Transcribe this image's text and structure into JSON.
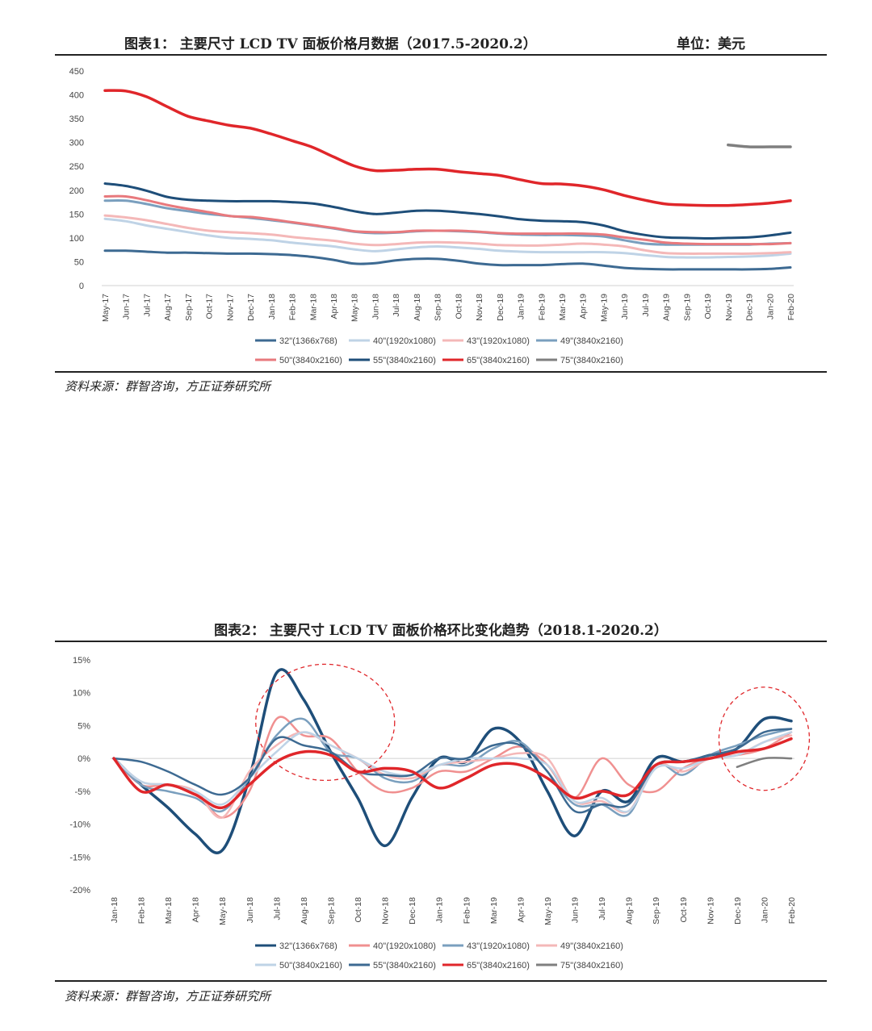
{
  "chart1": {
    "title": "图表1：  主要尺寸 LCD TV 面板价格月数据（2017.5-2020.2）",
    "unit": "单位：美元",
    "source": "资料来源：群智咨询，方正证券研究所"
  },
  "chart2": {
    "title": "图表2：  主要尺寸 LCD TV 面板价格环比变化趋势（2018.1-2020.2）",
    "source": "资料来源：群智咨询，方正证券研究所"
  },
  "chart_data": [
    {
      "type": "line",
      "title": "图表1：  主要尺寸 LCD TV 面板价格月数据（2017.5-2020.2）",
      "ylabel": "单位：美元",
      "ylim": [
        0,
        450
      ],
      "yticks": [
        0,
        50,
        100,
        150,
        200,
        250,
        300,
        350,
        400,
        450
      ],
      "grid": false,
      "legend": "bottom",
      "categories": [
        "May-17",
        "Jun-17",
        "Jul-17",
        "Aug-17",
        "Sep-17",
        "Oct-17",
        "Nov-17",
        "Dec-17",
        "Jan-18",
        "Feb-18",
        "Mar-18",
        "Apr-18",
        "May-18",
        "Jun-18",
        "Jul-18",
        "Aug-18",
        "Sep-18",
        "Oct-18",
        "Nov-18",
        "Dec-18",
        "Jan-19",
        "Feb-19",
        "Mar-19",
        "Apr-19",
        "May-19",
        "Jun-19",
        "Jul-19",
        "Aug-19",
        "Sep-19",
        "Oct-19",
        "Nov-19",
        "Dec-19",
        "Jan-20",
        "Feb-20"
      ],
      "series": [
        {
          "name": "32\"(1366x768)",
          "color": "#3d6a92",
          "width": 3,
          "values": [
            73,
            73,
            71,
            69,
            69,
            68,
            67,
            67,
            66,
            64,
            60,
            54,
            46,
            47,
            53,
            56,
            56,
            52,
            46,
            43,
            43,
            43,
            45,
            46,
            42,
            37,
            35,
            34,
            34,
            34,
            34,
            34,
            35,
            38
          ]
        },
        {
          "name": "40\"(1920x1080)",
          "color": "#bfd3e6",
          "width": 3,
          "values": [
            140,
            135,
            126,
            119,
            112,
            105,
            100,
            98,
            95,
            90,
            86,
            82,
            76,
            72,
            76,
            80,
            82,
            80,
            77,
            73,
            71,
            70,
            70,
            70,
            70,
            68,
            64,
            60,
            59,
            59,
            60,
            61,
            63,
            67
          ]
        },
        {
          "name": "43\"(1920x1080)",
          "color": "#f4b8b8",
          "width": 3,
          "values": [
            147,
            143,
            137,
            129,
            121,
            115,
            112,
            110,
            107,
            102,
            98,
            94,
            88,
            85,
            87,
            90,
            91,
            90,
            88,
            85,
            84,
            84,
            86,
            88,
            86,
            82,
            74,
            68,
            67,
            67,
            67,
            67,
            68,
            70
          ]
        },
        {
          "name": "49\"(3840x2160)",
          "color": "#7a9fbe",
          "width": 3,
          "values": [
            178,
            178,
            171,
            162,
            156,
            150,
            146,
            142,
            137,
            132,
            126,
            120,
            113,
            110,
            111,
            114,
            115,
            114,
            112,
            109,
            107,
            106,
            106,
            105,
            103,
            95,
            88,
            86,
            86,
            86,
            86,
            86,
            88,
            89
          ]
        },
        {
          "name": "50\"(3840x2160)",
          "color": "#e8797d",
          "width": 3,
          "values": [
            187,
            187,
            179,
            169,
            161,
            154,
            146,
            144,
            139,
            133,
            127,
            121,
            114,
            112,
            112,
            115,
            115,
            115,
            113,
            110,
            109,
            109,
            109,
            109,
            107,
            101,
            96,
            90,
            88,
            87,
            87,
            87,
            87,
            89
          ]
        },
        {
          "name": "55\"(3840x2160)",
          "color": "#1e4e79",
          "width": 3,
          "values": [
            214,
            209,
            199,
            186,
            180,
            178,
            177,
            177,
            177,
            175,
            172,
            165,
            156,
            150,
            153,
            157,
            157,
            154,
            150,
            145,
            139,
            136,
            135,
            133,
            126,
            114,
            106,
            101,
            100,
            99,
            100,
            101,
            105,
            111
          ]
        },
        {
          "name": "65\"(3840x2160)",
          "color": "#e0262a",
          "width": 3.5,
          "values": [
            409,
            408,
            396,
            375,
            355,
            345,
            336,
            330,
            318,
            304,
            290,
            270,
            251,
            241,
            242,
            244,
            244,
            239,
            235,
            231,
            222,
            214,
            213,
            209,
            201,
            189,
            179,
            171,
            169,
            168,
            168,
            170,
            173,
            178
          ]
        },
        {
          "name": "75\"(3840x2160)",
          "color": "#7f7f7f",
          "width": 3.5,
          "values": [
            null,
            null,
            null,
            null,
            null,
            null,
            null,
            null,
            null,
            null,
            null,
            null,
            null,
            null,
            null,
            null,
            null,
            null,
            null,
            null,
            null,
            null,
            null,
            null,
            null,
            null,
            null,
            null,
            null,
            null,
            295,
            291,
            291,
            291
          ]
        }
      ]
    },
    {
      "type": "line",
      "title": "图表2：  主要尺寸 LCD TV 面板价格环比变化趋势（2018.1-2020.2）",
      "ylim": [
        -20,
        15
      ],
      "yticks": [
        -20,
        -15,
        -10,
        -5,
        0,
        5,
        10,
        15
      ],
      "ytick_labels": [
        "-20%",
        "-15%",
        "-10%",
        "-5%",
        "0%",
        "5%",
        "10%",
        "15%"
      ],
      "grid": false,
      "legend": "bottom",
      "annotations": [
        "dashed red circle around Jul-18 to Sep-18 peaks",
        "dashed red circle around Dec-19 to Feb-20 rise"
      ],
      "categories": [
        "Jan-18",
        "Feb-18",
        "Mar-18",
        "Apr-18",
        "May-18",
        "Jun-18",
        "Jul-18",
        "Aug-18",
        "Sep-18",
        "Oct-18",
        "Nov-18",
        "Dec-18",
        "Jan-19",
        "Feb-19",
        "Mar-19",
        "Apr-19",
        "May-19",
        "Jun-19",
        "Jul-19",
        "Aug-19",
        "Sep-19",
        "Oct-19",
        "Nov-19",
        "Dec-19",
        "Jan-20",
        "Feb-20"
      ],
      "series": [
        {
          "name": "32\"(1366x768)",
          "color": "#1e4e79",
          "width": 3.5,
          "values": [
            0,
            -4,
            -7.5,
            -11.5,
            -14,
            -3,
            13,
            9,
            1,
            -6,
            -13.3,
            -6,
            0,
            -0.5,
            4.5,
            2.5,
            -5,
            -11.8,
            -5,
            -6.5,
            0,
            -0.5,
            0.5,
            1.5,
            6,
            5.7
          ]
        },
        {
          "name": "40\"(1920x1080)",
          "color": "#f09090",
          "width": 2.5,
          "values": [
            0,
            -4,
            -4,
            -5,
            -9,
            -5,
            6,
            3.5,
            3,
            -2,
            -5,
            -4.5,
            -2,
            -2,
            0,
            1.8,
            -1,
            -6,
            0,
            -4,
            -5,
            -1.5,
            0,
            0.5,
            1.5,
            4
          ]
        },
        {
          "name": "43\"(1920x1080)",
          "color": "#7a9fbe",
          "width": 2.5,
          "values": [
            0,
            -4,
            -5,
            -6,
            -8,
            -3,
            3.5,
            6,
            1,
            0,
            -3,
            -3.5,
            -1,
            -1,
            1.5,
            2.5,
            -2,
            -7,
            -7,
            -8.5,
            -1,
            -2.5,
            0.5,
            2,
            3.5,
            4.5
          ]
        },
        {
          "name": "49\"(3840x2160)",
          "color": "#f4b8b8",
          "width": 2.5,
          "values": [
            0,
            -3.5,
            -4,
            -5,
            -9,
            -2,
            2,
            4,
            2,
            0,
            -2.5,
            -3,
            -1,
            -0.5,
            0,
            0.8,
            0,
            -6.5,
            -6.5,
            -8,
            -1,
            -2,
            0,
            0.5,
            2.5,
            3.5
          ]
        },
        {
          "name": "50\"(3840x2160)",
          "color": "#bfd3e6",
          "width": 2.5,
          "values": [
            0,
            -3.5,
            -4,
            -5,
            -7,
            -3,
            1,
            4,
            2,
            0,
            -2,
            -2.5,
            -1,
            0,
            0,
            0,
            -1,
            -6.5,
            -6,
            -8,
            -1.5,
            -1.5,
            0,
            0.5,
            2.5,
            4
          ]
        },
        {
          "name": "55\"(3840x2160)",
          "color": "#3d6a92",
          "width": 2.5,
          "values": [
            0,
            -0.5,
            -2,
            -4,
            -5.5,
            -3,
            3,
            2,
            1,
            -2,
            -2.5,
            -2.5,
            0,
            0,
            2,
            2,
            -2,
            -8,
            -7,
            -7,
            -1,
            -0.5,
            0.5,
            1.5,
            4,
            4.5
          ]
        },
        {
          "name": "65\"(3840x2160)",
          "color": "#e0262a",
          "width": 3.5,
          "values": [
            0,
            -5,
            -4,
            -5.5,
            -7.5,
            -4,
            -0.5,
            1,
            0.5,
            -2,
            -1.5,
            -2,
            -4.5,
            -3,
            -1,
            -1,
            -3,
            -6,
            -5,
            -5.5,
            -1,
            -0.5,
            0,
            1,
            1.5,
            3
          ]
        },
        {
          "name": "75\"(3840x2160)",
          "color": "#7f7f7f",
          "width": 2.5,
          "values": [
            null,
            null,
            null,
            null,
            null,
            null,
            null,
            null,
            null,
            null,
            null,
            null,
            null,
            null,
            null,
            null,
            null,
            null,
            null,
            null,
            null,
            null,
            null,
            -1.3,
            0,
            0
          ]
        }
      ]
    }
  ]
}
